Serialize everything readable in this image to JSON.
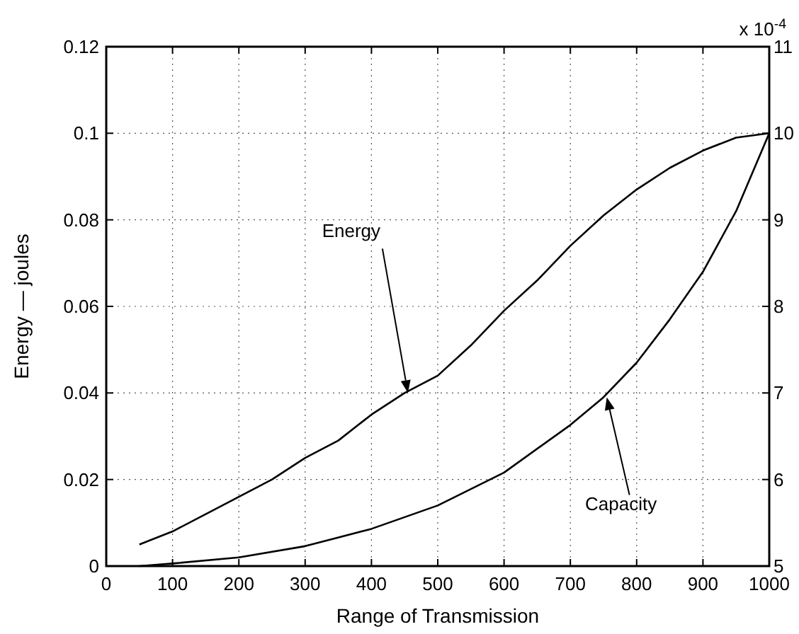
{
  "chart_data": {
    "type": "line",
    "xlabel": "Range of Transmission",
    "ylabel": "Energy — joules",
    "xlim": [
      0,
      1000
    ],
    "xticks": [
      0,
      100,
      200,
      300,
      400,
      500,
      600,
      700,
      800,
      900,
      1000
    ],
    "ylim": [
      0,
      0.12
    ],
    "yticks": [
      0,
      0.02,
      0.04,
      0.06,
      0.08,
      0.1,
      0.12
    ],
    "y2lim": [
      5,
      11
    ],
    "y2ticks": [
      5,
      6,
      7,
      8,
      9,
      10,
      11
    ],
    "grid": true,
    "line_style": "solid",
    "marker": "none",
    "series": [
      {
        "color": "#000000",
        "x": [
          50,
          100,
          150,
          200,
          250,
          300,
          350,
          400,
          450,
          500,
          550,
          600,
          650,
          700,
          750,
          800,
          850,
          900,
          950,
          1000
        ],
        "values": [
          0.005,
          0.008,
          0.012,
          0.016,
          0.02,
          0.025,
          0.029,
          0.035,
          0.04,
          0.044,
          0.051,
          0.059,
          0.066,
          0.074,
          0.081,
          0.087,
          0.092,
          0.096,
          0.099,
          0.1
        ]
      },
      {
        "color": "#000000",
        "axis": "y2",
        "x": [
          50,
          100,
          200,
          300,
          400,
          500,
          600,
          700,
          750,
          800,
          850,
          900,
          950,
          1000
        ],
        "values": [
          5.0,
          5.03,
          5.1,
          5.23,
          5.43,
          5.7,
          6.08,
          6.63,
          6.95,
          7.35,
          7.85,
          8.4,
          9.1,
          10
        ]
      }
    ],
    "annotations": [
      {
        "text": "Energy",
        "x": 455,
        "y": 0.04
      },
      {
        "text": "Capacity",
        "x": 755,
        "y": 0.039
      },
      "x 10$^{-4}$"
    ]
  }
}
